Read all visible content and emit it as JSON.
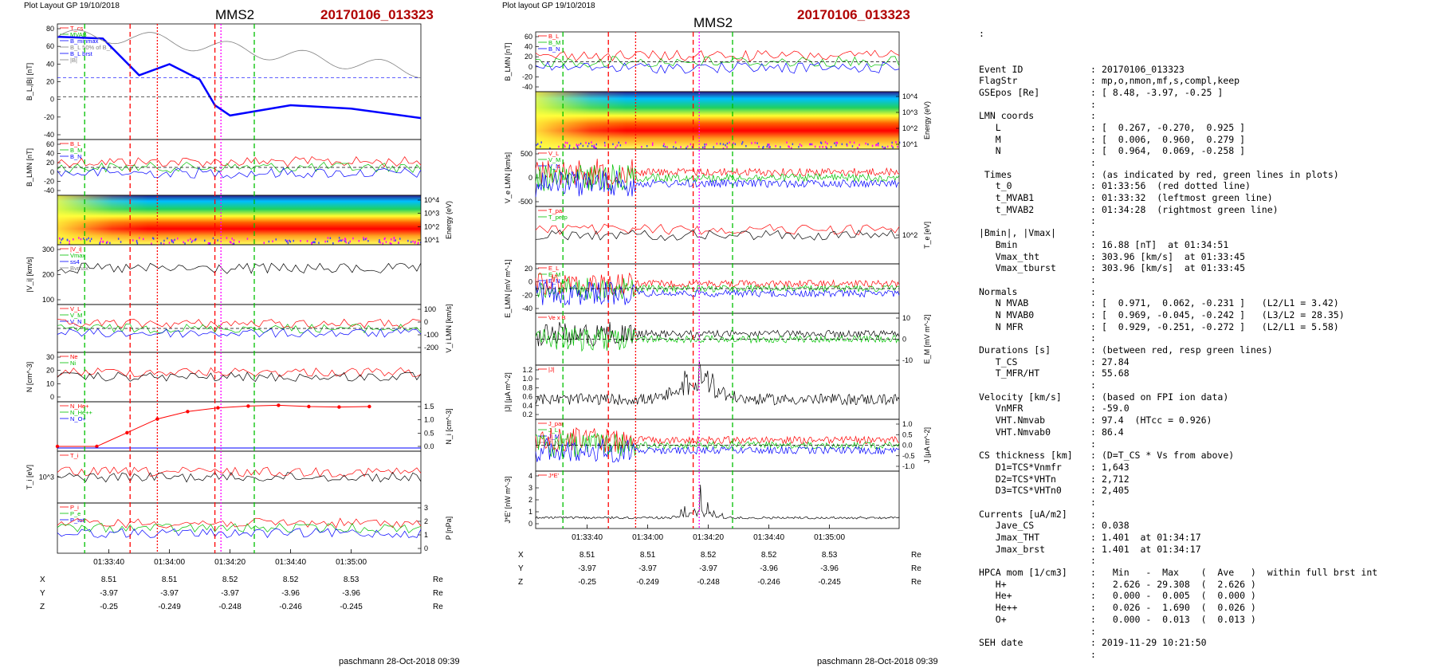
{
  "left_panel": {
    "header": "Plot Layout GP 19/10/2018",
    "sc": "MMS2",
    "event": "20170106_013323",
    "footer": "paschmann 28-Oct-2018 09:39",
    "time_ticks": [
      "01:33:40",
      "01:34:00",
      "01:34:20",
      "01:34:40",
      "01:35:00"
    ],
    "pos_rows": [
      {
        "label": "X",
        "values": [
          "8.51",
          "8.51",
          "8.52",
          "8.52",
          "8.53"
        ],
        "unit": "Re"
      },
      {
        "label": "Y",
        "values": [
          "-3.97",
          "-3.97",
          "-3.97",
          "-3.96",
          "-3.96"
        ],
        "unit": "Re"
      },
      {
        "label": "Z",
        "values": [
          "-0.25",
          "-0.249",
          "-0.248",
          "-0.246",
          "-0.245"
        ],
        "unit": "Re"
      }
    ],
    "panels": [
      {
        "id": "bl",
        "ylabel": "B_L,|B| [nT]",
        "yticks": [
          "80",
          "60",
          "40",
          "20",
          "0",
          "-20",
          "-40"
        ],
        "legend": [
          "T_cs",
          "MVAB",
          "B_minmax",
          "B_L 50% of B_L",
          "B_L brst",
          "|B|"
        ]
      },
      {
        "id": "blmn",
        "ylabel": "B_LMN [nT]",
        "yticks": [
          "60",
          "40",
          "20",
          "0",
          "-20",
          "-40"
        ],
        "legend": [
          "B_L",
          "B_M",
          "B_N"
        ]
      },
      {
        "id": "spec",
        "ylabel": "Energy (eV)",
        "yticks": [
          "10^4",
          "10^3",
          "10^2",
          "10^1"
        ]
      },
      {
        "id": "vi",
        "ylabel": "|V_i| [km/s]",
        "yticks": [
          "300",
          "200",
          "100"
        ],
        "legend": [
          "|V_i|",
          "Vmax",
          "ss4",
          "Bvmax"
        ]
      },
      {
        "id": "vlmn",
        "ylabel": "V_i LMN [km/s]",
        "yticks": [
          "100",
          "0",
          "-100",
          "-200"
        ],
        "legend": [
          "V_L",
          "V_M",
          "V_N"
        ]
      },
      {
        "id": "n",
        "ylabel": "N [cm^-3]",
        "yticks": [
          "30",
          "20",
          "10",
          "0"
        ],
        "legend": [
          "Ne",
          "Ni"
        ]
      },
      {
        "id": "hpca",
        "ylabel": "N_i [cm^-3]",
        "yticks": [
          "1.5",
          "1.0",
          "0.5",
          "0.0"
        ],
        "legend": [
          "N_He+",
          "N_He++",
          "N_O+"
        ]
      },
      {
        "id": "ti",
        "ylabel": "T_i [eV]",
        "yticks": [
          "10^3"
        ],
        "legend": [
          "T_i"
        ]
      },
      {
        "id": "p",
        "ylabel": "P [nPa]",
        "yticks": [
          "3",
          "2",
          "1",
          "0"
        ],
        "legend": [
          "P_i",
          "P_e",
          "P_tot"
        ]
      }
    ]
  },
  "mid_panel": {
    "header": "Plot layout GP 19/10/2018",
    "sc": "MMS2",
    "event": "20170106_013323",
    "footer": "paschmann 28-Oct-2018 09:39",
    "time_ticks": [
      "01:33:40",
      "01:34:00",
      "01:34:20",
      "01:34:40",
      "01:35:00"
    ],
    "pos_rows": [
      {
        "label": "X",
        "values": [
          "8.51",
          "8.51",
          "8.52",
          "8.52",
          "8.53"
        ],
        "unit": "Re"
      },
      {
        "label": "Y",
        "values": [
          "-3.97",
          "-3.97",
          "-3.97",
          "-3.96",
          "-3.96"
        ],
        "unit": "Re"
      },
      {
        "label": "Z",
        "values": [
          "-0.25",
          "-0.249",
          "-0.248",
          "-0.246",
          "-0.245"
        ],
        "unit": "Re"
      }
    ],
    "panels": [
      {
        "id": "blmn",
        "ylabel": "B_LMN [nT]",
        "yticks": [
          "60",
          "40",
          "20",
          "0",
          "-20",
          "-40"
        ],
        "legend": [
          "B_L",
          "B_M",
          "B_N"
        ]
      },
      {
        "id": "spec",
        "ylabel": "Energy (eV)",
        "yticks": [
          "10^4",
          "10^3",
          "10^2",
          "10^1"
        ]
      },
      {
        "id": "ve",
        "ylabel": "V_e LMN [km/s]",
        "yticks": [
          "500",
          "0",
          "-500"
        ],
        "legend": [
          "V_L",
          "V_M",
          "V_N"
        ]
      },
      {
        "id": "te",
        "ylabel": "T_e [eV]",
        "yticks": [
          "10^2"
        ],
        "legend": [
          "T_par",
          "T_perp"
        ]
      },
      {
        "id": "e",
        "ylabel": "E_LMN [mV m^-1]",
        "yticks": [
          "20",
          "0",
          "-20",
          "-40"
        ],
        "legend": [
          "E_L",
          "E_M",
          "E_N"
        ]
      },
      {
        "id": "em",
        "ylabel": "E_M [mV m^-2]",
        "yticks": [
          "10",
          "0",
          "-10"
        ],
        "legend": [
          "Ve x B"
        ]
      },
      {
        "id": "j",
        "ylabel": "|J| [µA m^-2]",
        "yticks": [
          "1.2",
          "1.0",
          "0.8",
          "0.6",
          "0.4",
          "0.2"
        ],
        "legend": [
          "|J|"
        ]
      },
      {
        "id": "jlmn",
        "ylabel": "J [µA m^-2]",
        "yticks": [
          "1.0",
          "0.5",
          "0.0",
          "-0.5",
          "-1.0"
        ],
        "legend": [
          "J_par",
          "J_L",
          "J_M",
          "J_N"
        ]
      },
      {
        "id": "je",
        "ylabel": "J*E' [nW m^-3]",
        "yticks": [
          "4",
          "3",
          "2",
          "1",
          "0"
        ],
        "legend": [
          "J*E'"
        ]
      }
    ]
  },
  "info_text": {
    "lead": ":",
    "rows": [
      {
        "k": "Event ID",
        "v": "20170106_013323"
      },
      {
        "k": "FlagStr",
        "v": "mp,o,nmon,mf,s,compl,keep"
      },
      {
        "k": "GSEpos [Re]",
        "v": "[ 8.48, -3.97, -0.25 ]"
      },
      {
        "k": "",
        "v": ""
      },
      {
        "k": "LMN coords",
        "v": ""
      },
      {
        "k": "   L",
        "v": "[  0.267, -0.270,  0.925 ]"
      },
      {
        "k": "   M",
        "v": "[  0.006,  0.960,  0.279 ]"
      },
      {
        "k": "   N",
        "v": "[  0.964,  0.069, -0.258 ]"
      },
      {
        "k": "",
        "v": ""
      },
      {
        "k": " Times",
        "v": "(as indicated by red, green lines in plots)"
      },
      {
        "k": "   t_0",
        "v": "01:33:56  (red dotted line)"
      },
      {
        "k": "   t_MVAB1",
        "v": "01:33:32  (leftmost green line)"
      },
      {
        "k": "   t_MVAB2",
        "v": "01:34:28  (rightmost green line)"
      },
      {
        "k": "",
        "v": ""
      },
      {
        "k": "|Bmin|, |Vmax|",
        "v": ""
      },
      {
        "k": "   Bmin",
        "v": "16.88 [nT]  at 01:34:51"
      },
      {
        "k": "   Vmax_tht",
        "v": "303.96 [km/s]  at 01:33:45"
      },
      {
        "k": "   Vmax_tburst",
        "v": "303.96 [km/s]  at 01:33:45"
      },
      {
        "k": "",
        "v": ""
      },
      {
        "k": "Normals",
        "v": ""
      },
      {
        "k": "   N MVAB",
        "v": "[  0.971,  0.062, -0.231 ]   (L2/L1 = 3.42)"
      },
      {
        "k": "   N MVAB0",
        "v": "[  0.969, -0.045, -0.242 ]   (L3/L2 = 28.35)"
      },
      {
        "k": "   N MFR",
        "v": "[  0.929, -0.251, -0.272 ]   (L2/L1 = 5.58)"
      },
      {
        "k": "",
        "v": ""
      },
      {
        "k": "Durations [s]",
        "v": "(between red, resp green lines)"
      },
      {
        "k": "   T_CS",
        "v": "27.84"
      },
      {
        "k": "   T_MFR/HT",
        "v": "55.68"
      },
      {
        "k": "",
        "v": ""
      },
      {
        "k": "Velocity [km/s]",
        "v": "(based on FPI ion data)"
      },
      {
        "k": "   VnMFR",
        "v": "-59.0"
      },
      {
        "k": "   VHT.Nmvab",
        "v": "97.4  (HTcc = 0.926)"
      },
      {
        "k": "   VHT.Nmvab0",
        "v": "86.4"
      },
      {
        "k": "",
        "v": ""
      },
      {
        "k": "CS thickness [km]",
        "v": "(D=T_CS * Vs from above)"
      },
      {
        "k": "   D1=TCS*Vnmfr",
        "v": "1,643"
      },
      {
        "k": "   D2=TCS*VHTn",
        "v": "2,712"
      },
      {
        "k": "   D3=TCS*VHTn0",
        "v": "2,405"
      },
      {
        "k": "",
        "v": ""
      },
      {
        "k": "Currents [uA/m2]",
        "v": ""
      },
      {
        "k": "   Jave_CS",
        "v": "0.038"
      },
      {
        "k": "   Jmax_THT",
        "v": "1.401  at 01:34:17"
      },
      {
        "k": "   Jmax_brst",
        "v": "1.401  at 01:34:17"
      },
      {
        "k": "",
        "v": ""
      },
      {
        "k": "HPCA mom [1/cm3]",
        "v": "  Min   -  Max    (  Ave   )  within full brst int"
      },
      {
        "k": "   H+",
        "v": "  2.626 - 29.308  (  2.626 )"
      },
      {
        "k": "   He+",
        "v": "  0.000 -  0.005  (  0.000 )"
      },
      {
        "k": "   He++",
        "v": "  0.026 -  1.690  (  0.026 )"
      },
      {
        "k": "   O+",
        "v": "  0.000 -  0.013  (  0.013 )"
      },
      {
        "k": "",
        "v": ""
      },
      {
        "k": "SEH date",
        "v": "2019-11-29 10:21:50"
      },
      {
        "k": "",
        "v": ""
      }
    ]
  },
  "colors": {
    "red": "#ff0000",
    "green": "#00c000",
    "blue": "#0000ff",
    "magenta": "#ff00ff",
    "gray": "#808080",
    "title_red": "#b00000"
  },
  "chart_data": [
    {
      "type": "line",
      "title": "MMS2 20170106_013323",
      "x_range": [
        "01:33:23",
        "01:35:23"
      ],
      "markers": {
        "t_MVAB1": "01:33:32",
        "t_0": "01:33:56",
        "t_MVAB2": "01:34:28",
        "t_cs_start": "01:33:47",
        "t_cs_end": "01:34:15",
        "t_jmax": "01:34:17"
      },
      "series": [
        {
          "name": "B_L brst",
          "x": [
            "01:33:23",
            "01:33:38",
            "01:33:50",
            "01:34:00",
            "01:34:10",
            "01:34:15",
            "01:34:20",
            "01:34:40",
            "01:35:00",
            "01:35:23"
          ],
          "values": [
            70,
            68,
            25,
            38,
            20,
            -10,
            -22,
            -10,
            -14,
            -25
          ]
        },
        {
          "name": "N_He++",
          "x": [
            "01:33:23",
            "01:33:36",
            "01:33:46",
            "01:33:56",
            "01:34:06",
            "01:34:16",
            "01:34:26",
            "01:34:36",
            "01:34:46",
            "01:34:56",
            "01:35:06"
          ],
          "values": [
            0.0,
            0.0,
            0.55,
            1.1,
            1.4,
            1.55,
            1.62,
            1.65,
            1.6,
            1.58,
            1.6
          ]
        }
      ]
    },
    {
      "type": "line",
      "title": "MMS2 20170106_013323",
      "x_range": [
        "01:33:23",
        "01:35:23"
      ],
      "series": [
        {
          "name": "|J|",
          "x": [
            "01:34:17"
          ],
          "values": [
            1.401
          ]
        }
      ]
    }
  ]
}
